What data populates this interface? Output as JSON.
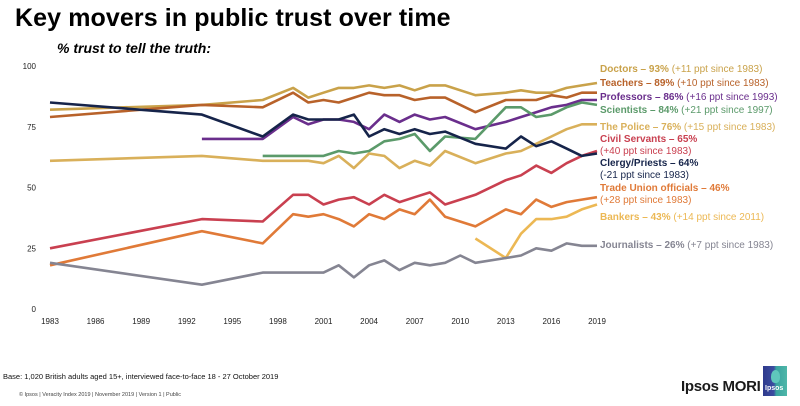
{
  "title": "Key movers in public trust over time",
  "subtitle": "% trust to tell the truth:",
  "footer": {
    "base": "Base: 1,020 British adults aged 15+, interviewed face-to-face 18 - 27 October 2019",
    "copyright": "© Ipsos | Veracity Index 2019 | November 2019 | Version 1 | Public",
    "brand": "Ipsos MORI",
    "logo_text": "Ipsos"
  },
  "chart_data": {
    "type": "line",
    "title": "Key movers in public trust over time",
    "subtitle": "% trust to tell the truth:",
    "xlabel": "",
    "ylabel": "",
    "xlim": [
      1983,
      2019
    ],
    "ylim": [
      0,
      100
    ],
    "x_ticks": [
      "1983",
      "1986",
      "1989",
      "1992",
      "1995",
      "1998",
      "2001",
      "2004",
      "2007",
      "2010",
      "2013",
      "2016",
      "2019"
    ],
    "y_ticks": [
      "0",
      "25",
      "50",
      "75",
      "100"
    ],
    "grid": false,
    "legend": "right (inline labels)",
    "series": [
      {
        "name": "Doctors",
        "color": "#c9a24a",
        "label_bold": "Doctors – 93%",
        "label_rest": " (+11 ppt since 1983)",
        "points": [
          [
            1983,
            82
          ],
          [
            1993,
            84
          ],
          [
            1997,
            86
          ],
          [
            1999,
            91
          ],
          [
            2000,
            87
          ],
          [
            2001,
            89
          ],
          [
            2002,
            91
          ],
          [
            2003,
            91
          ],
          [
            2004,
            92
          ],
          [
            2005,
            91
          ],
          [
            2006,
            92
          ],
          [
            2007,
            90
          ],
          [
            2008,
            92
          ],
          [
            2009,
            92
          ],
          [
            2011,
            88
          ],
          [
            2013,
            89
          ],
          [
            2014,
            90
          ],
          [
            2015,
            89
          ],
          [
            2016,
            89
          ],
          [
            2017,
            91
          ],
          [
            2018,
            92
          ],
          [
            2019,
            93
          ]
        ]
      },
      {
        "name": "Teachers",
        "color": "#b8622a",
        "label_bold": "Teachers – 89%",
        "label_rest": " (+10 ppt since 1983)",
        "points": [
          [
            1983,
            79
          ],
          [
            1993,
            84
          ],
          [
            1997,
            83
          ],
          [
            1999,
            89
          ],
          [
            2000,
            85
          ],
          [
            2001,
            86
          ],
          [
            2002,
            85
          ],
          [
            2003,
            87
          ],
          [
            2004,
            89
          ],
          [
            2005,
            88
          ],
          [
            2006,
            88
          ],
          [
            2007,
            86
          ],
          [
            2008,
            87
          ],
          [
            2009,
            87
          ],
          [
            2011,
            81
          ],
          [
            2013,
            86
          ],
          [
            2014,
            86
          ],
          [
            2015,
            86
          ],
          [
            2016,
            88
          ],
          [
            2017,
            87
          ],
          [
            2018,
            89
          ],
          [
            2019,
            89
          ]
        ]
      },
      {
        "name": "Professors",
        "color": "#6a2e8c",
        "label_bold": "Professors – 86%",
        "label_rest": " (+16 ppt since 1993)",
        "points": [
          [
            1993,
            70
          ],
          [
            1997,
            70
          ],
          [
            1999,
            79
          ],
          [
            2000,
            76
          ],
          [
            2001,
            78
          ],
          [
            2002,
            78
          ],
          [
            2003,
            77
          ],
          [
            2004,
            74
          ],
          [
            2005,
            80
          ],
          [
            2006,
            77
          ],
          [
            2007,
            80
          ],
          [
            2008,
            78
          ],
          [
            2009,
            79
          ],
          [
            2011,
            74
          ],
          [
            2013,
            77
          ],
          [
            2014,
            79
          ],
          [
            2015,
            81
          ],
          [
            2016,
            83
          ],
          [
            2017,
            84
          ],
          [
            2018,
            86
          ],
          [
            2019,
            86
          ]
        ]
      },
      {
        "name": "Scientists",
        "color": "#5b9a6a",
        "label_bold": "Scientists – 84%",
        "label_rest": " (+21 ppt since 1997)",
        "points": [
          [
            1997,
            63
          ],
          [
            1999,
            63
          ],
          [
            2000,
            63
          ],
          [
            2001,
            63
          ],
          [
            2002,
            65
          ],
          [
            2003,
            64
          ],
          [
            2004,
            65
          ],
          [
            2005,
            69
          ],
          [
            2006,
            70
          ],
          [
            2007,
            72
          ],
          [
            2008,
            65
          ],
          [
            2009,
            71
          ],
          [
            2011,
            70
          ],
          [
            2013,
            83
          ],
          [
            2014,
            83
          ],
          [
            2015,
            79
          ],
          [
            2016,
            80
          ],
          [
            2017,
            83
          ],
          [
            2018,
            85
          ],
          [
            2019,
            84
          ]
        ]
      },
      {
        "name": "The Police",
        "color": "#d9b05a",
        "label_bold": "The Police – 76%",
        "label_rest": " (+15 ppt since 1983)",
        "points": [
          [
            1983,
            61
          ],
          [
            1993,
            63
          ],
          [
            1997,
            61
          ],
          [
            1999,
            61
          ],
          [
            2000,
            61
          ],
          [
            2001,
            60
          ],
          [
            2002,
            63
          ],
          [
            2003,
            58
          ],
          [
            2004,
            64
          ],
          [
            2005,
            63
          ],
          [
            2006,
            58
          ],
          [
            2007,
            61
          ],
          [
            2008,
            59
          ],
          [
            2009,
            65
          ],
          [
            2011,
            60
          ],
          [
            2013,
            64
          ],
          [
            2014,
            65
          ],
          [
            2015,
            68
          ],
          [
            2016,
            71
          ],
          [
            2017,
            74
          ],
          [
            2018,
            76
          ],
          [
            2019,
            76
          ]
        ]
      },
      {
        "name": "Civil Servants",
        "color": "#c94050",
        "label_bold": "Civil Servants – 65%",
        "label_rest": "(+40 ppt since 1983)",
        "two_line": true,
        "points": [
          [
            1983,
            25
          ],
          [
            1993,
            37
          ],
          [
            1997,
            36
          ],
          [
            1999,
            47
          ],
          [
            2000,
            47
          ],
          [
            2001,
            43
          ],
          [
            2002,
            45
          ],
          [
            2003,
            46
          ],
          [
            2004,
            43
          ],
          [
            2005,
            47
          ],
          [
            2006,
            44
          ],
          [
            2007,
            46
          ],
          [
            2008,
            48
          ],
          [
            2009,
            43
          ],
          [
            2011,
            47
          ],
          [
            2013,
            53
          ],
          [
            2014,
            55
          ],
          [
            2015,
            59
          ],
          [
            2016,
            56
          ],
          [
            2017,
            60
          ],
          [
            2018,
            63
          ],
          [
            2019,
            65
          ]
        ]
      },
      {
        "name": "Clergy/Priests",
        "color": "#16244a",
        "label_bold": "Clergy/Priests – 64%",
        "label_rest": "(-21 ppt since 1983)",
        "two_line": true,
        "points": [
          [
            1983,
            85
          ],
          [
            1993,
            80
          ],
          [
            1997,
            71
          ],
          [
            1999,
            80
          ],
          [
            2000,
            78
          ],
          [
            2001,
            78
          ],
          [
            2002,
            78
          ],
          [
            2003,
            80
          ],
          [
            2004,
            71
          ],
          [
            2005,
            74
          ],
          [
            2006,
            72
          ],
          [
            2007,
            74
          ],
          [
            2008,
            72
          ],
          [
            2009,
            73
          ],
          [
            2011,
            68
          ],
          [
            2013,
            66
          ],
          [
            2014,
            71
          ],
          [
            2015,
            67
          ],
          [
            2016,
            69
          ],
          [
            2017,
            66
          ],
          [
            2018,
            63
          ],
          [
            2019,
            64
          ]
        ]
      },
      {
        "name": "Trade Union officials",
        "color": "#e07a38",
        "label_bold": "Trade Union officials – 46%",
        "label_rest": "(+28 ppt since 1983)",
        "two_line": true,
        "points": [
          [
            1983,
            18
          ],
          [
            1993,
            32
          ],
          [
            1997,
            27
          ],
          [
            1999,
            39
          ],
          [
            2000,
            38
          ],
          [
            2001,
            39
          ],
          [
            2002,
            37
          ],
          [
            2003,
            34
          ],
          [
            2004,
            39
          ],
          [
            2005,
            37
          ],
          [
            2006,
            41
          ],
          [
            2007,
            39
          ],
          [
            2008,
            45
          ],
          [
            2009,
            38
          ],
          [
            2011,
            34
          ],
          [
            2013,
            41
          ],
          [
            2014,
            39
          ],
          [
            2015,
            45
          ],
          [
            2016,
            42
          ],
          [
            2017,
            44
          ],
          [
            2018,
            45
          ],
          [
            2019,
            46
          ]
        ]
      },
      {
        "name": "Bankers",
        "color": "#ecb854",
        "label_bold": "Bankers – 43%",
        "label_rest": " (+14 ppt since 2011)",
        "points": [
          [
            2011,
            29
          ],
          [
            2013,
            21
          ],
          [
            2014,
            31
          ],
          [
            2015,
            37
          ],
          [
            2016,
            37
          ],
          [
            2017,
            38
          ],
          [
            2018,
            41
          ],
          [
            2019,
            43
          ]
        ]
      },
      {
        "name": "Journalists",
        "color": "#858592",
        "label_bold": "Journalists – 26%",
        "label_rest": " (+7 ppt since 1983)",
        "points": [
          [
            1983,
            19
          ],
          [
            1993,
            10
          ],
          [
            1997,
            15
          ],
          [
            1999,
            15
          ],
          [
            2000,
            15
          ],
          [
            2001,
            15
          ],
          [
            2002,
            18
          ],
          [
            2003,
            13
          ],
          [
            2004,
            18
          ],
          [
            2005,
            20
          ],
          [
            2006,
            16
          ],
          [
            2007,
            19
          ],
          [
            2008,
            18
          ],
          [
            2009,
            19
          ],
          [
            2010,
            22
          ],
          [
            2011,
            19
          ],
          [
            2013,
            21
          ],
          [
            2014,
            22
          ],
          [
            2015,
            25
          ],
          [
            2016,
            24
          ],
          [
            2017,
            27
          ],
          [
            2018,
            26
          ],
          [
            2019,
            26
          ]
        ]
      }
    ]
  }
}
